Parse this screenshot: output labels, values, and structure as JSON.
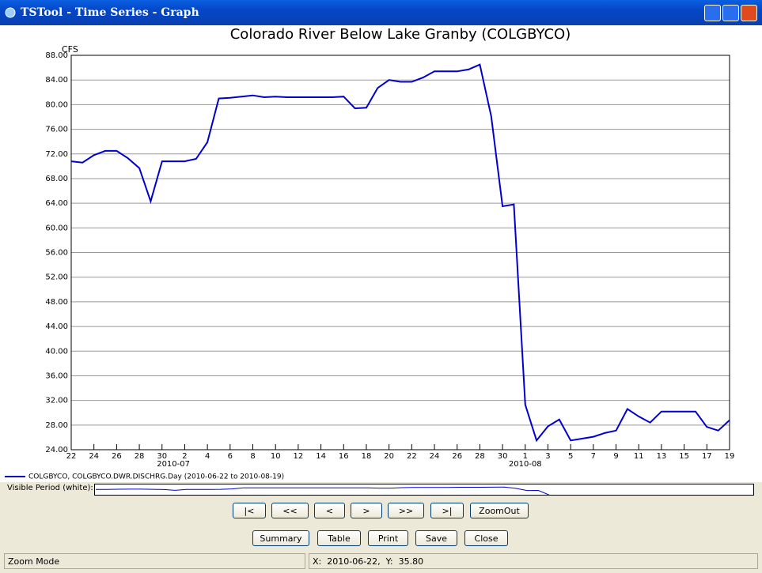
{
  "window": {
    "title": "TSTool - Time Series - Graph"
  },
  "chart_data": {
    "type": "line",
    "title": "Colorado River Below Lake Granby (COLGBYCO)",
    "y_label": "CFS",
    "categories": [
      "22",
      null,
      "24",
      null,
      "26",
      null,
      "28",
      null,
      "30",
      null,
      "2",
      null,
      "4",
      null,
      "6",
      null,
      "8",
      null,
      "10",
      null,
      "12",
      null,
      "14",
      null,
      "16",
      null,
      "18",
      null,
      "20",
      null,
      "22",
      null,
      "24",
      null,
      "26",
      null,
      "28",
      null,
      "30",
      null,
      "1",
      null,
      "3",
      null,
      "5",
      null,
      "7",
      null,
      "9",
      null,
      "11",
      null,
      "13",
      null,
      "15",
      null,
      "17",
      null,
      "19"
    ],
    "x_groups": [
      {
        "label": "2010-07",
        "start": 9
      },
      {
        "label": "2010-08",
        "start": 40
      }
    ],
    "series": [
      {
        "name": "COLGBYCO, COLGBYCO.DWR.DISCHRG.Day (2010-06-22 to 2010-08-19)",
        "color": "#0000cc",
        "values": [
          70.8,
          70.6,
          71.8,
          72.5,
          72.5,
          71.3,
          69.7,
          64.3,
          70.8,
          70.8,
          70.8,
          71.2,
          73.9,
          81.0,
          81.1,
          81.3,
          81.5,
          81.2,
          81.3,
          81.2,
          81.2,
          81.2,
          81.2,
          81.2,
          81.3,
          79.4,
          79.5,
          82.7,
          84.0,
          83.7,
          83.7,
          84.4,
          85.4,
          85.4,
          85.4,
          85.7,
          86.5,
          78.1,
          63.5,
          63.8,
          31.3,
          25.5,
          27.8,
          28.9,
          25.5,
          25.8,
          26.1,
          26.7,
          27.1,
          30.6,
          29.4,
          28.4,
          30.2,
          30.2,
          30.2,
          30.2,
          27.7,
          27.1,
          28.8
        ]
      }
    ],
    "ylim": [
      24,
      88
    ],
    "yticks": [
      {
        "value": 24,
        "label": "24.00"
      },
      {
        "value": 28,
        "label": "28.00"
      },
      {
        "value": 32,
        "label": "32.00"
      },
      {
        "value": 36,
        "label": "36.00"
      },
      {
        "value": 40,
        "label": "40.00"
      },
      {
        "value": 44,
        "label": "44.00"
      },
      {
        "value": 48,
        "label": "48.00"
      },
      {
        "value": 52,
        "label": "52.00"
      },
      {
        "value": 56,
        "label": "56.00"
      },
      {
        "value": 60,
        "label": "60.00"
      },
      {
        "value": 64,
        "label": "64.00"
      },
      {
        "value": 68,
        "label": "68.00"
      },
      {
        "value": 72,
        "label": "72.00"
      },
      {
        "value": 76,
        "label": "76.00"
      },
      {
        "value": 80,
        "label": "80.00"
      },
      {
        "value": 84,
        "label": "84.00"
      },
      {
        "value": 88,
        "label": "88.00"
      }
    ],
    "grid": true
  },
  "visible_period_label": "Visible Period (white):",
  "nav_buttons": [
    "|<",
    "<<",
    "<",
    ">",
    ">>",
    ">|",
    "ZoomOut"
  ],
  "action_buttons": [
    "Summary",
    "Table",
    "Print",
    "Save",
    "Close"
  ],
  "status": {
    "mode": "Zoom Mode",
    "position": "X:  2010-06-22,  Y:  35.80"
  }
}
